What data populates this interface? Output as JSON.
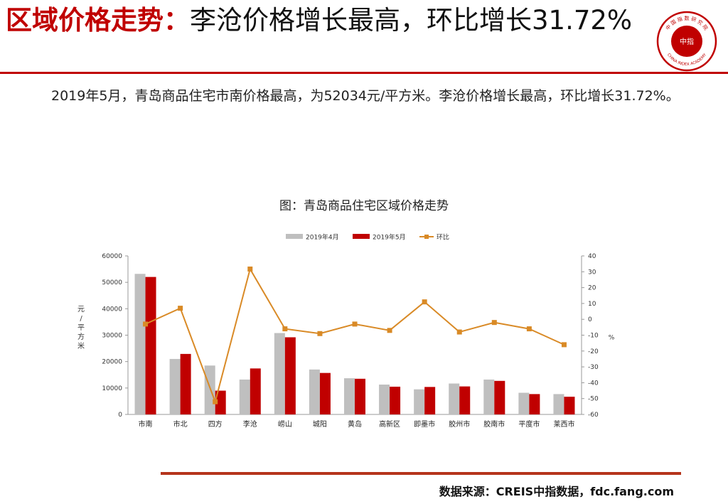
{
  "header": {
    "title_prefix": "区域价格走势：",
    "title_rest": "李沧价格增长最高，环比增长31.72%"
  },
  "logo": {
    "center_text": "中指",
    "ring_text": "中 国 指 数 研 究 院",
    "ring_en": "CHINA INDEX ACADEMY"
  },
  "summary": "2019年5月，青岛商品住宅市南价格最高，为52034元/平方米。李沧价格增长最高，环比增长31.72%。",
  "chart_title": "图：青岛商品住宅区域价格走势",
  "source": "数据来源：CREIS中指数据，fdc.fang.com",
  "colors": {
    "accent": "#c00000",
    "series_april": "#bfbfbf",
    "series_may": "#c00000",
    "series_mom": "#d98a26"
  },
  "chart_data": {
    "type": "bar",
    "categories": [
      "市南",
      "市北",
      "四方",
      "李沧",
      "崂山",
      "城阳",
      "黄岛",
      "高新区",
      "即墨市",
      "胶州市",
      "胶南市",
      "平度市",
      "莱西市"
    ],
    "series": [
      {
        "name": "2019年4月",
        "type": "bar",
        "axis": "left",
        "values": [
          53200,
          21000,
          18500,
          13200,
          30800,
          17000,
          13700,
          11300,
          9500,
          11700,
          13200,
          8200,
          7700
        ]
      },
      {
        "name": "2019年5月",
        "type": "bar",
        "axis": "left",
        "values": [
          52034,
          22900,
          9000,
          17400,
          29200,
          15700,
          13500,
          10500,
          10400,
          10600,
          12700,
          7700,
          6700
        ]
      },
      {
        "name": "环比",
        "type": "line",
        "axis": "right",
        "values": [
          -3,
          7,
          -52,
          31.72,
          -6,
          -9,
          -3,
          -7,
          11,
          -8,
          -2,
          -6,
          -16
        ]
      }
    ],
    "ylabel": "元/平方米",
    "y2label": "%",
    "ylim": [
      0,
      60000
    ],
    "y2lim": [
      -60,
      40
    ],
    "yticks": [
      0,
      10000,
      20000,
      30000,
      40000,
      50000,
      60000
    ],
    "y2ticks": [
      -60,
      -50,
      -40,
      -30,
      -20,
      -10,
      0,
      10,
      20,
      30,
      40
    ],
    "legend_position": "top",
    "grid": false
  }
}
